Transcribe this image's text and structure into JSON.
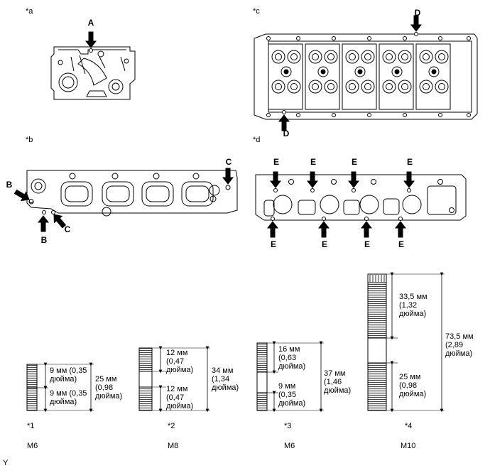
{
  "panels": {
    "a": {
      "label": "*a",
      "marks": [
        "A"
      ]
    },
    "b": {
      "label": "*b",
      "marks": [
        "B",
        "B",
        "C",
        "C"
      ]
    },
    "c": {
      "label": "*c",
      "marks": [
        "D",
        "D"
      ]
    },
    "d": {
      "label": "*d",
      "marks": [
        "E",
        "E",
        "E",
        "E",
        "E",
        "E",
        "E",
        "E"
      ]
    }
  },
  "bolts": [
    {
      "label": "*1",
      "size": "M6",
      "dim_top": "9 мм (0,35\nдюйма)",
      "dim_bottom": "9 мм (0,35\nдюйма)",
      "dim_total": "25 мм\n(0,98\nдюйма)"
    },
    {
      "label": "*2",
      "size": "M8",
      "dim_top": "12 мм\n(0,47\nдюйма)",
      "dim_bottom": "12 мм\n(0,47\nдюйма)",
      "dim_total": "34 мм\n(1,34\nдюйма)"
    },
    {
      "label": "*3",
      "size": "M6",
      "dim_top": "16 мм\n(0,63\nдюйма)",
      "dim_bottom": "9 мм\n(0,35\nдюйма)",
      "dim_total": "37 мм\n(1,46\nдюйма)"
    },
    {
      "label": "*4",
      "size": "M10",
      "dim_top": "33,5 мм\n(1,32\nдюйма)",
      "dim_bottom": "25 мм\n(0,98\nдюйма)",
      "dim_total": "73,5 мм\n(2,89\nдюйма)"
    }
  ],
  "corner_mark": "Y",
  "colors": {
    "line": "#000000",
    "fill": "#ffffff",
    "thread": "#555555"
  }
}
